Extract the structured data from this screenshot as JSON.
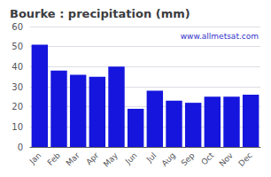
{
  "chart_data": {
    "type": "bar",
    "title": "Bourke : precipitation (mm)",
    "categories": [
      "Jan",
      "Feb",
      "Mar",
      "Apr",
      "May",
      "Jun",
      "Jul",
      "Aug",
      "Sep",
      "Oct",
      "Nov",
      "Dec"
    ],
    "values": [
      51,
      38,
      36,
      35,
      40,
      19,
      28,
      23,
      22,
      25,
      25,
      26
    ],
    "color": "#1515dd",
    "ylim": [
      0,
      60
    ],
    "yticks": [
      0,
      10,
      20,
      30,
      40,
      50,
      60
    ],
    "grid": true,
    "annotations": [
      "www.allmetsat.com"
    ]
  }
}
